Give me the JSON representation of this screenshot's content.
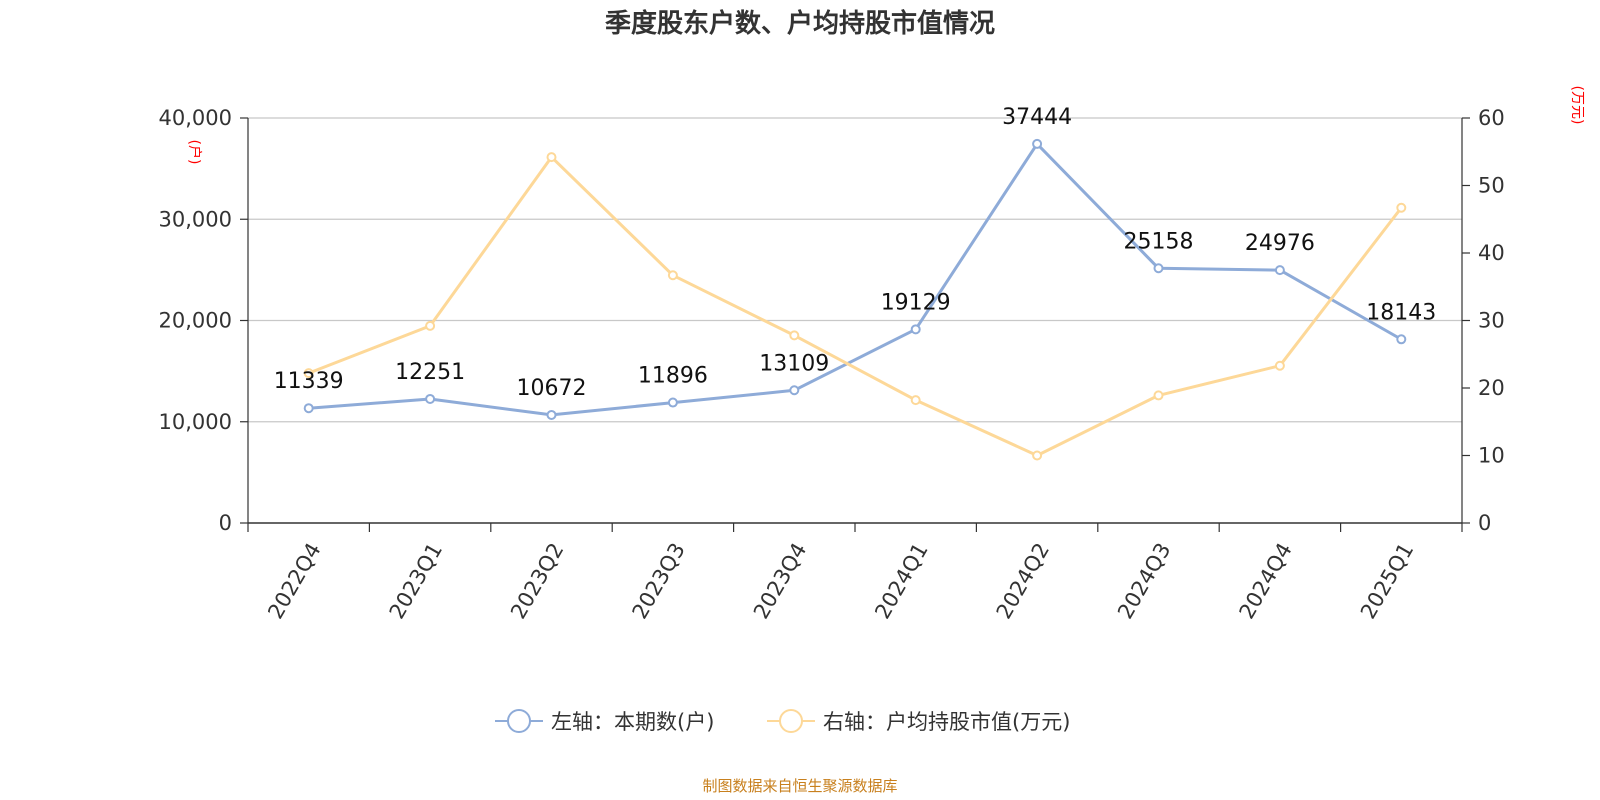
{
  "chart_data": {
    "type": "line",
    "title": "季度股东户数、户均持股市值情况",
    "categories": [
      "2022Q4",
      "2023Q1",
      "2023Q2",
      "2023Q3",
      "2023Q4",
      "2024Q1",
      "2024Q2",
      "2024Q3",
      "2024Q4",
      "2025Q1"
    ],
    "left_axis": {
      "unit": "(户)",
      "ylim": [
        0,
        40000
      ],
      "ticks": [
        "0",
        "10,000",
        "20,000",
        "30,000",
        "40,000"
      ],
      "tick_values": [
        0,
        10000,
        20000,
        30000,
        40000
      ]
    },
    "right_axis": {
      "unit": "(万元)",
      "ylim": [
        0,
        60
      ],
      "ticks": [
        "0",
        "10",
        "20",
        "30",
        "40",
        "50",
        "60"
      ],
      "tick_values": [
        0,
        10,
        20,
        30,
        40,
        50,
        60
      ]
    },
    "series": [
      {
        "name": "左轴：本期数(户)",
        "axis": "left",
        "color": "#8eabd8",
        "values": [
          11339,
          12251,
          10672,
          11896,
          13109,
          19129,
          37444,
          25158,
          24976,
          18143
        ],
        "labels": [
          "11339",
          "12251",
          "10672",
          "11896",
          "13109",
          "19129",
          "37444",
          "25158",
          "24976",
          "18143"
        ]
      },
      {
        "name": "右轴：户均持股市值(万元)",
        "axis": "right",
        "color": "#fdd898",
        "values": [
          22.2,
          29.2,
          54.2,
          36.7,
          27.8,
          18.2,
          10.0,
          18.9,
          23.3,
          46.7
        ]
      }
    ],
    "grid": true,
    "legend_position": "bottom"
  },
  "source_text": "制图数据来自恒生聚源数据库"
}
